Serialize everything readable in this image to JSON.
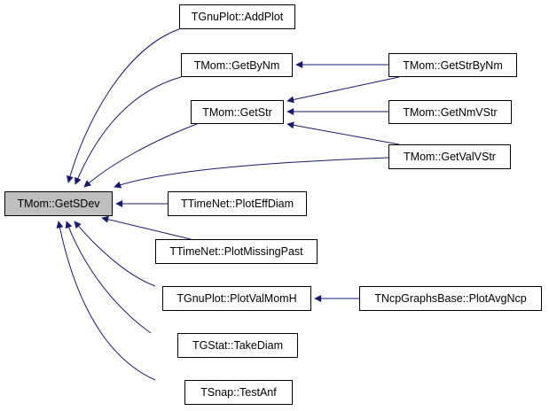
{
  "diagram": {
    "type": "call-graph",
    "edge_color": "#191970",
    "root_fill": "#bfbfbf",
    "nodes": [
      {
        "id": "getsdev",
        "label": "TMom::GetSDev",
        "root": true
      },
      {
        "id": "addplot",
        "label": "TGnuPlot::AddPlot"
      },
      {
        "id": "getbynm",
        "label": "TMom::GetByNm"
      },
      {
        "id": "getstr",
        "label": "TMom::GetStr"
      },
      {
        "id": "getstrbynm",
        "label": "TMom::GetStrByNm"
      },
      {
        "id": "getnmvstr",
        "label": "TMom::GetNmVStr"
      },
      {
        "id": "getvalvstr",
        "label": "TMom::GetValVStr"
      },
      {
        "id": "ploteffdiam",
        "label": "TTimeNet::PlotEffDiam"
      },
      {
        "id": "plotmissingpast",
        "label": "TTimeNet::PlotMissingPast"
      },
      {
        "id": "plotvalmomh",
        "label": "TGnuPlot::PlotValMomH"
      },
      {
        "id": "plotavgncp",
        "label": "TNcpGraphsBase::PlotAvgNcp"
      },
      {
        "id": "takediam",
        "label": "TGStat::TakeDiam"
      },
      {
        "id": "testanf",
        "label": "TSnap::TestAnf"
      }
    ],
    "edges": [
      {
        "from": "addplot",
        "to": "getsdev"
      },
      {
        "from": "getbynm",
        "to": "getsdev"
      },
      {
        "from": "getstr",
        "to": "getsdev"
      },
      {
        "from": "getvalvstr",
        "to": "getsdev"
      },
      {
        "from": "ploteffdiam",
        "to": "getsdev"
      },
      {
        "from": "plotmissingpast",
        "to": "getsdev"
      },
      {
        "from": "plotvalmomh",
        "to": "getsdev"
      },
      {
        "from": "takediam",
        "to": "getsdev"
      },
      {
        "from": "testanf",
        "to": "getsdev"
      },
      {
        "from": "getstrbynm",
        "to": "getbynm"
      },
      {
        "from": "getstrbynm",
        "to": "getstr"
      },
      {
        "from": "getnmvstr",
        "to": "getstr"
      },
      {
        "from": "getvalvstr",
        "to": "getstr"
      },
      {
        "from": "plotavgncp",
        "to": "plotvalmomh"
      }
    ]
  }
}
